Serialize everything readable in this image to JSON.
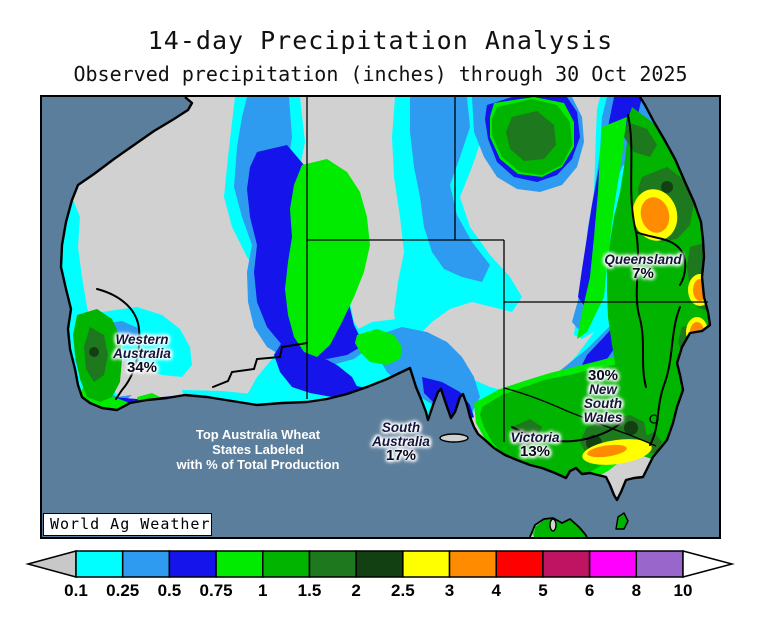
{
  "header": {
    "title": "14-day Precipitation Analysis",
    "subtitle": "Observed precipitation (inches) through 30 Oct 2025"
  },
  "map": {
    "watermark": "World Ag Weather",
    "note_lines": [
      "Top Australia Wheat",
      "States Labeled",
      "with % of Total Production"
    ],
    "regions": [
      {
        "name": "Western Australia",
        "production_pct": "34%"
      },
      {
        "name": "South Australia",
        "production_pct": "17%"
      },
      {
        "name": "Victoria",
        "production_pct": "13%"
      },
      {
        "name": "New South Wales",
        "production_pct": "30%"
      },
      {
        "name": "Queensland",
        "production_pct": "7%"
      }
    ],
    "colors": {
      "ocean": "#5A7E9C",
      "dry_land": "#D1D1D1",
      "coastline": "#000000"
    }
  },
  "colorbar": {
    "ticks": [
      "0.1",
      "0.25",
      "0.5",
      "0.75",
      "1",
      "1.5",
      "2",
      "2.5",
      "3",
      "4",
      "5",
      "6",
      "8",
      "10"
    ],
    "segment_colors": [
      "#00FFFF",
      "#2E9BF0",
      "#1414EB",
      "#00EB00",
      "#00B400",
      "#1E781E",
      "#124012",
      "#FFFF00",
      "#FF8C00",
      "#FF0000",
      "#BE1462",
      "#FF00FF",
      "#9966CC"
    ],
    "below_min_color": "#C8C8C8",
    "above_max_color": "#FFFFFF"
  }
}
